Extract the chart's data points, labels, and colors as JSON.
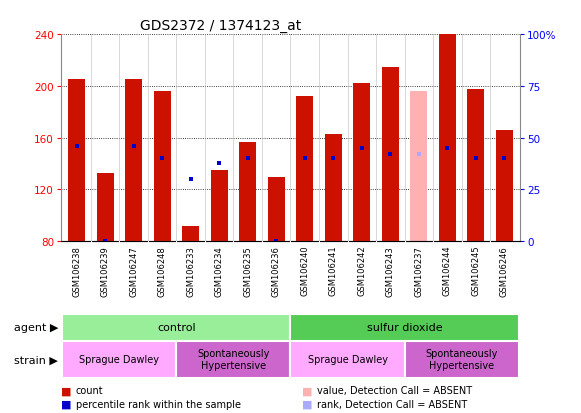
{
  "title": "GDS2372 / 1374123_at",
  "samples": [
    "GSM106238",
    "GSM106239",
    "GSM106247",
    "GSM106248",
    "GSM106233",
    "GSM106234",
    "GSM106235",
    "GSM106236",
    "GSM106240",
    "GSM106241",
    "GSM106242",
    "GSM106243",
    "GSM106237",
    "GSM106244",
    "GSM106245",
    "GSM106246"
  ],
  "count_values": [
    205,
    133,
    205,
    196,
    92,
    135,
    157,
    130,
    192,
    163,
    202,
    215,
    196,
    240,
    198,
    166
  ],
  "rank_values": [
    46,
    0,
    46,
    40,
    30,
    38,
    40,
    0,
    40,
    40,
    45,
    42,
    42,
    45,
    40,
    40
  ],
  "absent_flags": [
    false,
    false,
    false,
    false,
    false,
    false,
    false,
    false,
    false,
    false,
    false,
    false,
    true,
    false,
    false,
    false
  ],
  "ylim_left": [
    80,
    240
  ],
  "ylim_right": [
    0,
    100
  ],
  "yticks_left": [
    80,
    120,
    160,
    200,
    240
  ],
  "yticks_right": [
    0,
    25,
    50,
    75,
    100
  ],
  "bar_color": "#CC1100",
  "bar_absent_color": "#FFB0B0",
  "rank_color": "#0000CC",
  "rank_absent_color": "#AAAAFF",
  "agent_groups": [
    {
      "label": "control",
      "start": 0,
      "end": 8,
      "color": "#99EE99"
    },
    {
      "label": "sulfur dioxide",
      "start": 8,
      "end": 16,
      "color": "#55CC55"
    }
  ],
  "strain_groups": [
    {
      "label": "Sprague Dawley",
      "start": 0,
      "end": 4,
      "color": "#FFAAFF"
    },
    {
      "label": "Spontaneously\nHypertensive",
      "start": 4,
      "end": 8,
      "color": "#CC66CC"
    },
    {
      "label": "Sprague Dawley",
      "start": 8,
      "end": 12,
      "color": "#FFAAFF"
    },
    {
      "label": "Spontaneously\nHypertensive",
      "start": 12,
      "end": 16,
      "color": "#CC66CC"
    }
  ],
  "legend_items": [
    {
      "label": "count",
      "color": "#CC1100"
    },
    {
      "label": "percentile rank within the sample",
      "color": "#0000CC"
    },
    {
      "label": "value, Detection Call = ABSENT",
      "color": "#FFB0B0"
    },
    {
      "label": "rank, Detection Call = ABSENT",
      "color": "#AAAAFF"
    }
  ]
}
